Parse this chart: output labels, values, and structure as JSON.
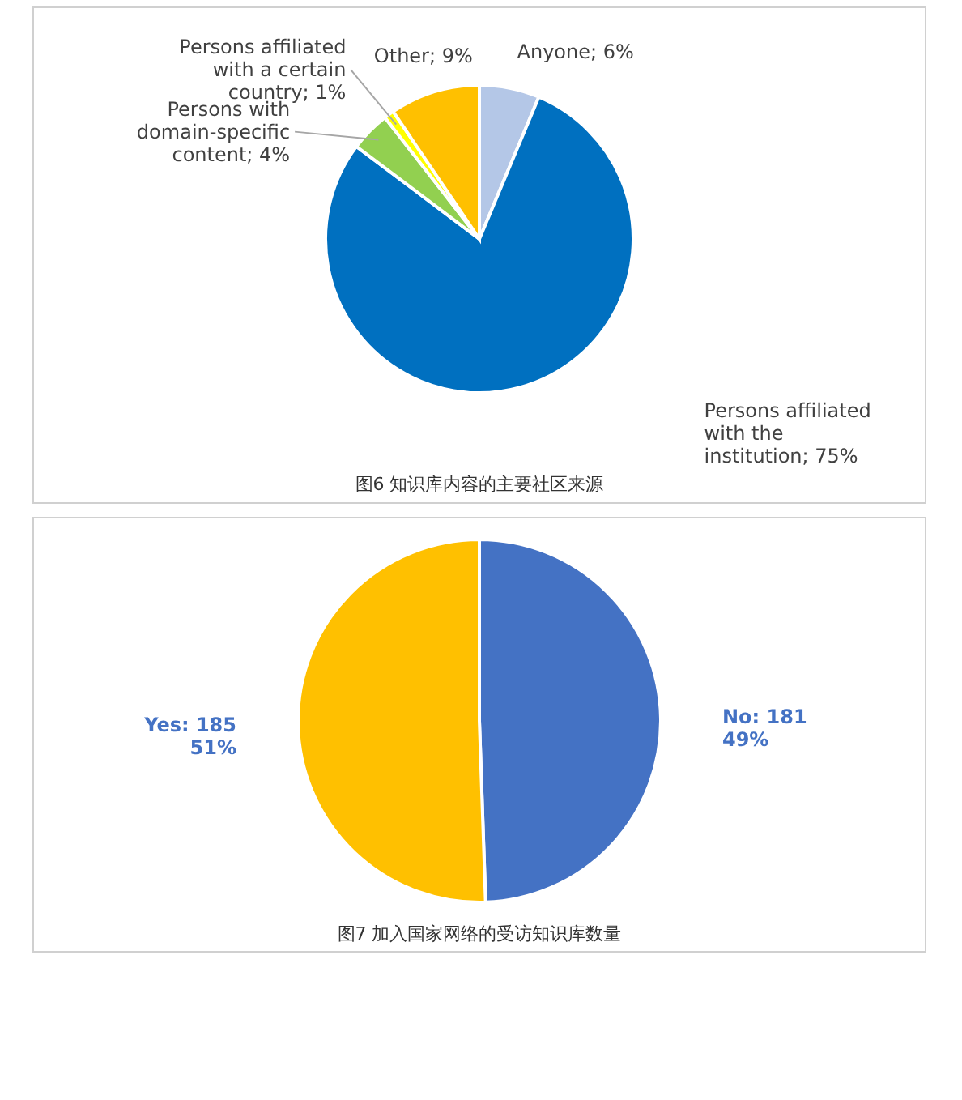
{
  "chart_data": [
    {
      "type": "pie",
      "title": "图6 知识库内容的主要社区来源",
      "categories": [
        "Anyone",
        "Persons affiliated with the institution",
        "Persons with domain-specific content",
        "Persons affiliated with a certain country",
        "Other"
      ],
      "values": [
        6,
        75,
        4,
        1,
        9
      ],
      "colors": [
        "#b4c7e7",
        "#0070c0",
        "#92d050",
        "#ffff00",
        "#ffc000"
      ],
      "value_labels": [
        "6%",
        "75%",
        "4%",
        "1%",
        "9%"
      ]
    },
    {
      "type": "pie",
      "title": "图7 加入国家网络的受访知识库数量",
      "categories": [
        "No",
        "Yes"
      ],
      "values": [
        181,
        185
      ],
      "colors": [
        "#4472c4",
        "#ffc000"
      ],
      "value_labels": [
        "181 49%",
        "185 51%"
      ]
    }
  ]
}
